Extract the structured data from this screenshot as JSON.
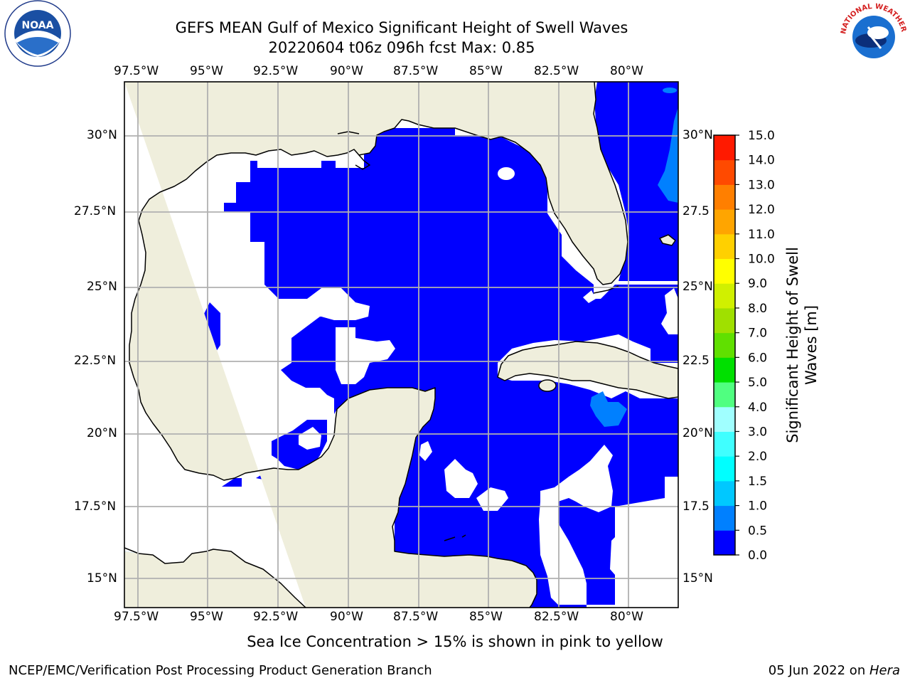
{
  "title": "GEFS MEAN Gulf of Mexico Significant Height of Swell Waves",
  "subtitle": "20220604 t06z 096h fcst   Max: 0.85",
  "lon_labels": [
    "97.5°W",
    "95°W",
    "92.5°W",
    "90°W",
    "87.5°W",
    "85°W",
    "82.5°W",
    "80°W"
  ],
  "lat_labels_left": [
    "30°N",
    "27.5°N",
    "25°N",
    "22.5°N",
    "20°N",
    "17.5°N",
    "15°N"
  ],
  "lat_labels_right": [
    "30°N",
    "27.5",
    "25°N",
    "22.5",
    "20°N",
    "17.5",
    "15°N"
  ],
  "colorbar": {
    "label_line1": "Significant Height of Swell",
    "label_line2": "Waves [m]",
    "ticks": [
      "0.0",
      "0.5",
      "1.0",
      "1.5",
      "2.0",
      "3.0",
      "4.0",
      "5.0",
      "6.0",
      "7.0",
      "8.0",
      "9.0",
      "10.0",
      "11.0",
      "12.0",
      "13.0",
      "14.0",
      "15.0"
    ],
    "colors": [
      "#0000ff",
      "#0080ff",
      "#00c8ff",
      "#00ffff",
      "#40ffff",
      "#a0ffff",
      "#50ff80",
      "#00e000",
      "#60e000",
      "#a0e000",
      "#d0f000",
      "#ffff00",
      "#ffd000",
      "#ffa500",
      "#ff7f00",
      "#ff4a00",
      "#ff1a00"
    ]
  },
  "note": "Sea Ice Concentration > 15% is shown in pink to yellow",
  "credit": "NCEP/EMC/Verification Post Processing Product Generation Branch",
  "date_prefix": "05 Jun 2022 on ",
  "date_host": "Hera",
  "logos": {
    "left": "NOAA",
    "right": "NATIONAL WEATHER SERVICE"
  },
  "colors": {
    "land": "#efeedc",
    "swell": "#0000ff",
    "swell_light": "#0080ff",
    "grid": "#b0b0b0"
  }
}
